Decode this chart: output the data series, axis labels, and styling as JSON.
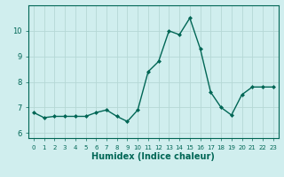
{
  "x": [
    0,
    1,
    2,
    3,
    4,
    5,
    6,
    7,
    8,
    9,
    10,
    11,
    12,
    13,
    14,
    15,
    16,
    17,
    18,
    19,
    20,
    21,
    22,
    23
  ],
  "y": [
    6.8,
    6.6,
    6.65,
    6.65,
    6.65,
    6.65,
    6.8,
    6.9,
    6.65,
    6.45,
    6.9,
    8.4,
    8.8,
    10.0,
    9.85,
    10.5,
    9.3,
    7.6,
    7.0,
    6.7,
    7.5,
    7.8,
    7.8,
    7.8
  ],
  "line_color": "#006655",
  "marker": "D",
  "marker_size": 2,
  "bg_color": "#d0eeee",
  "grid_color": "#b5d8d5",
  "xlabel": "Humidex (Indice chaleur)",
  "ylim": [
    5.8,
    11.0
  ],
  "xlim": [
    -0.5,
    23.5
  ],
  "yticks": [
    6,
    7,
    8,
    9,
    10
  ],
  "xticks": [
    0,
    1,
    2,
    3,
    4,
    5,
    6,
    7,
    8,
    9,
    10,
    11,
    12,
    13,
    14,
    15,
    16,
    17,
    18,
    19,
    20,
    21,
    22,
    23
  ],
  "tick_color": "#006655",
  "xlabel_fontsize": 7,
  "tick_fontsize": 6,
  "xtick_fontsize": 5,
  "line_width": 1.0
}
